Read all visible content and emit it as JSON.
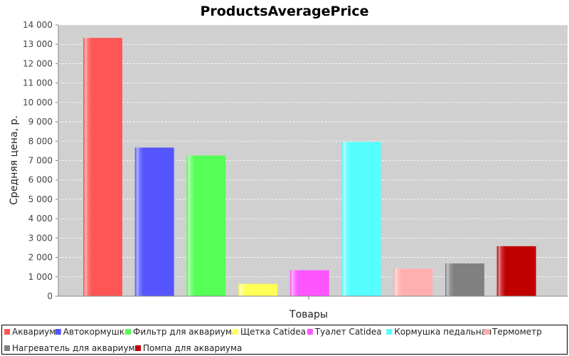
{
  "chart_data": {
    "type": "bar",
    "title": "ProductsAveragePrice",
    "xlabel": "Товары",
    "ylabel": "Средняя цена, р.",
    "ylim": [
      0,
      14000
    ],
    "yticks": [
      0,
      1000,
      2000,
      3000,
      4000,
      5000,
      6000,
      7000,
      8000,
      9000,
      10000,
      11000,
      12000,
      13000,
      14000
    ],
    "ytick_labels": [
      "0",
      "1 000",
      "2 000",
      "3 000",
      "4 000",
      "5 000",
      "6 000",
      "7 000",
      "8 000",
      "9 000",
      "10 000",
      "11 000",
      "12 000",
      "13 000",
      "14 000"
    ],
    "grid": true,
    "legend_position": "bottom",
    "series": [
      {
        "name": "Аквариум",
        "value": 13330,
        "color": "#ff5555"
      },
      {
        "name": "Автокормушка",
        "value": 7670,
        "color": "#5555ff"
      },
      {
        "name": "Фильтр для аквариума",
        "value": 7260,
        "color": "#55ff55"
      },
      {
        "name": "Щетка Catidea",
        "value": 640,
        "color": "#ffff55"
      },
      {
        "name": "Туалет Catidea",
        "value": 1340,
        "color": "#ff55ff"
      },
      {
        "name": "Кормушка педальная",
        "value": 7960,
        "color": "#55ffff"
      },
      {
        "name": "Термометр",
        "value": 1420,
        "color": "#ffafaf"
      },
      {
        "name": "Нагреватель для аквариума",
        "value": 1690,
        "color": "#808080"
      },
      {
        "name": "Помпа для аквариума",
        "value": 2580,
        "color": "#c00000"
      }
    ]
  },
  "colors": {
    "plot_background": "#d0d0d0",
    "gridline": "#ffffff",
    "legend_border": "#000000"
  }
}
